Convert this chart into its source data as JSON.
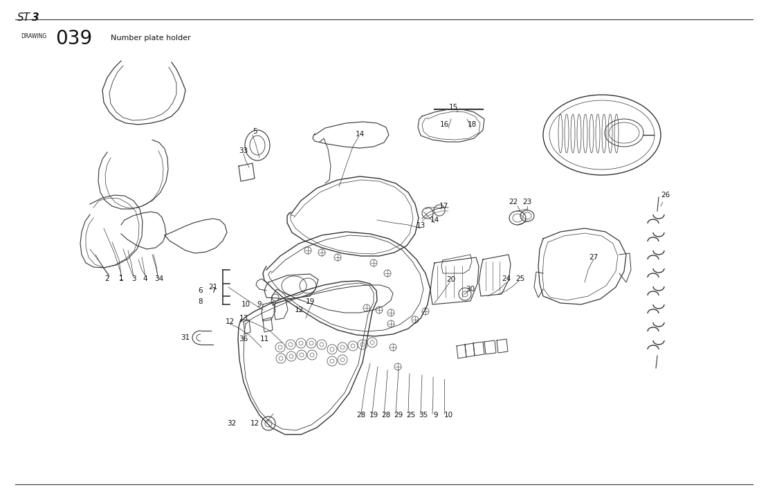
{
  "title_st": "ST",
  "title_3": "3",
  "drawing_label": "DRAWING",
  "drawing_number": "039",
  "drawing_title": "Number plate holder",
  "background_color": "#ffffff",
  "line_color": "#333333",
  "text_color": "#111111",
  "fig_width": 11.1,
  "fig_height": 7.14,
  "dpi": 100
}
